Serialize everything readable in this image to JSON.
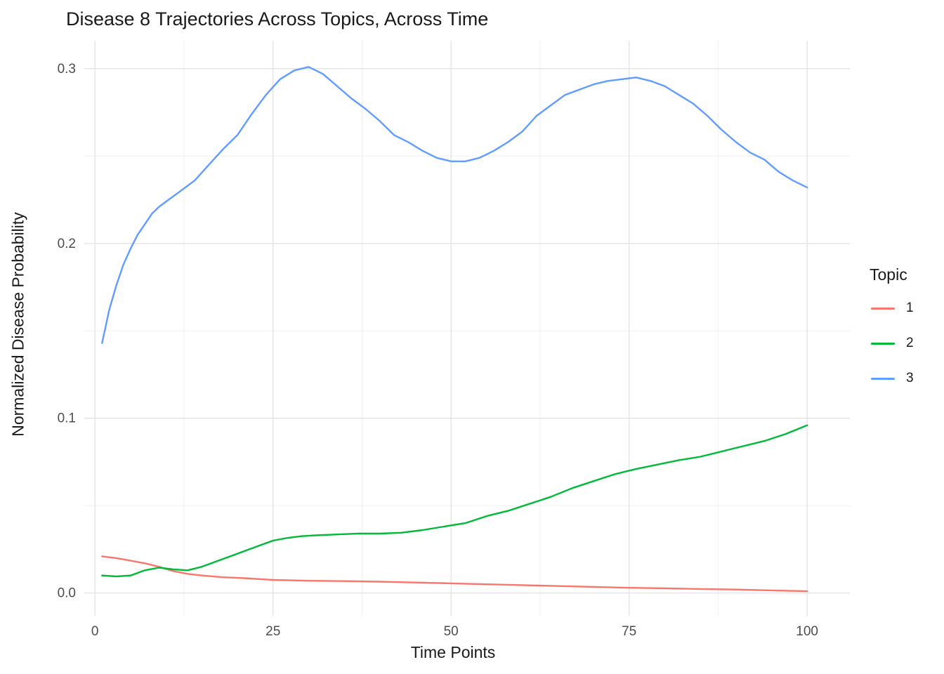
{
  "chart_data": {
    "type": "line",
    "title": "Disease 8 Trajectories Across Topics, Across Time",
    "xlabel": "Time Points",
    "ylabel": "Normalized Disease Probability",
    "legend_title": "Topic",
    "legend_position": "right",
    "grid": true,
    "panel_background": "#FFFFFF",
    "major_grid_color": "#E3E3E3",
    "minor_grid_color": "#F0F0F0",
    "tick_label_color": "#4D4D4D",
    "x_ticks": [
      0,
      25,
      50,
      75,
      100
    ],
    "x_tick_labels": [
      "0",
      "25",
      "50",
      "75",
      "100"
    ],
    "y_ticks": [
      0,
      0.1,
      0.2,
      0.3
    ],
    "y_tick_labels": [
      "0.0",
      "0.1",
      "0.2",
      "0.3"
    ],
    "xlim": [
      -1.5,
      106
    ],
    "ylim": [
      -0.013,
      0.316
    ],
    "series": [
      {
        "name": "1",
        "color": "#F8766D",
        "x": [
          1,
          3,
          5,
          7,
          9,
          11,
          13,
          15,
          18,
          21,
          25,
          30,
          35,
          40,
          45,
          50,
          55,
          60,
          65,
          70,
          75,
          80,
          85,
          90,
          95,
          100
        ],
        "y": [
          0.021,
          0.02,
          0.0185,
          0.017,
          0.015,
          0.0125,
          0.011,
          0.01,
          0.009,
          0.0085,
          0.0075,
          0.007,
          0.0068,
          0.0065,
          0.006,
          0.0055,
          0.005,
          0.0045,
          0.004,
          0.0035,
          0.003,
          0.0027,
          0.0023,
          0.002,
          0.0015,
          0.001
        ]
      },
      {
        "name": "2",
        "color": "#00BA38",
        "x": [
          1,
          3,
          5,
          7,
          9,
          11,
          13,
          15,
          17,
          19,
          21,
          23,
          25,
          27,
          29,
          31,
          34,
          37,
          40,
          43,
          46,
          49,
          52,
          55,
          58,
          61,
          64,
          67,
          70,
          73,
          76,
          79,
          82,
          85,
          88,
          91,
          94,
          97,
          100
        ],
        "y": [
          0.01,
          0.0095,
          0.01,
          0.013,
          0.0145,
          0.0135,
          0.013,
          0.015,
          0.018,
          0.021,
          0.024,
          0.027,
          0.03,
          0.0315,
          0.0325,
          0.033,
          0.0335,
          0.034,
          0.034,
          0.0345,
          0.036,
          0.038,
          0.04,
          0.044,
          0.047,
          0.051,
          0.055,
          0.06,
          0.064,
          0.068,
          0.071,
          0.0735,
          0.076,
          0.078,
          0.081,
          0.084,
          0.087,
          0.091,
          0.096
        ]
      },
      {
        "name": "3",
        "color": "#619CFF",
        "x": [
          1,
          2,
          3,
          4,
          5,
          6,
          7,
          8,
          9,
          10,
          12,
          14,
          16,
          18,
          20,
          22,
          24,
          26,
          28,
          30,
          32,
          34,
          36,
          38,
          40,
          42,
          44,
          46,
          48,
          50,
          52,
          54,
          56,
          58,
          60,
          62,
          64,
          66,
          68,
          70,
          72,
          74,
          76,
          78,
          80,
          82,
          84,
          86,
          88,
          90,
          92,
          94,
          96,
          98,
          100
        ],
        "y": [
          0.143,
          0.162,
          0.176,
          0.188,
          0.197,
          0.205,
          0.211,
          0.217,
          0.221,
          0.224,
          0.23,
          0.236,
          0.245,
          0.254,
          0.262,
          0.274,
          0.285,
          0.294,
          0.299,
          0.301,
          0.297,
          0.29,
          0.283,
          0.277,
          0.27,
          0.262,
          0.258,
          0.253,
          0.249,
          0.247,
          0.247,
          0.249,
          0.253,
          0.258,
          0.264,
          0.273,
          0.279,
          0.285,
          0.288,
          0.291,
          0.293,
          0.294,
          0.295,
          0.293,
          0.29,
          0.285,
          0.28,
          0.273,
          0.265,
          0.258,
          0.252,
          0.248,
          0.241,
          0.236,
          0.232
        ]
      }
    ]
  }
}
